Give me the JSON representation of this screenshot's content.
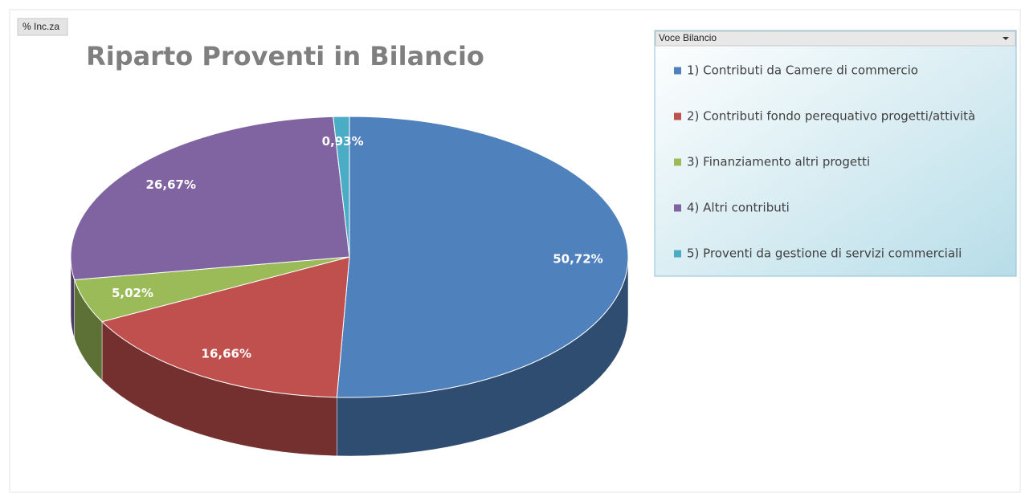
{
  "chart_data": {
    "type": "pie",
    "title": "Riparto Proventi in Bilancio",
    "field_button": "% Inc.za",
    "legend_title": "Voce Bilancio",
    "legend_position": "right",
    "categories": [
      "1) Contributi da Camere di commercio",
      "2) Contributi fondo perequativo progetti/attività",
      "3) Finanziamento altri progetti",
      "4) Altri contributi",
      "5) Proventi da gestione di servizi commerciali"
    ],
    "values": [
      50.72,
      16.66,
      5.02,
      26.67,
      0.93
    ],
    "value_labels": [
      "50,72%",
      "16,66%",
      "5,02%",
      "26,67%",
      "0,93%"
    ],
    "colors": [
      "#4f81bd",
      "#c0504d",
      "#9bbb59",
      "#8064a2",
      "#4bacc6"
    ]
  }
}
